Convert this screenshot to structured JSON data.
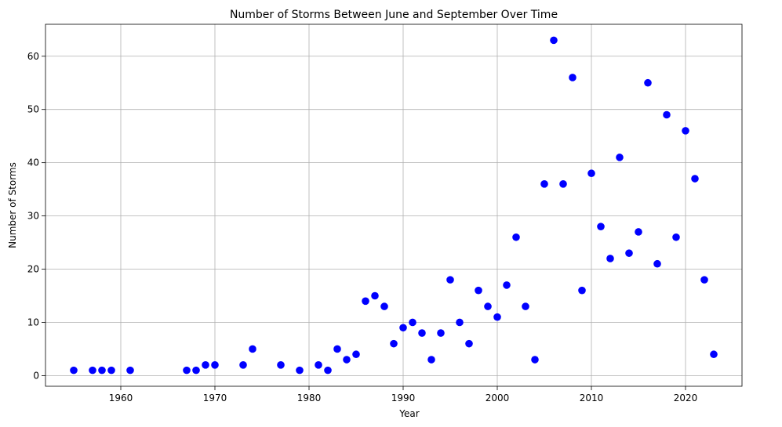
{
  "chart_data": {
    "type": "scatter",
    "title": "Number of Storms Between June and September Over Time",
    "xlabel": "Year",
    "ylabel": "Number of Storms",
    "xlim": [
      1952,
      2026
    ],
    "ylim": [
      -2,
      66
    ],
    "xticks": [
      1960,
      1970,
      1980,
      1990,
      2000,
      2010,
      2020
    ],
    "yticks": [
      0,
      10,
      20,
      30,
      40,
      50,
      60
    ],
    "grid": true,
    "marker_color": "#0000ff",
    "x": [
      1955,
      1957,
      1958,
      1959,
      1961,
      1967,
      1968,
      1969,
      1970,
      1973,
      1974,
      1977,
      1979,
      1981,
      1982,
      1983,
      1984,
      1985,
      1986,
      1987,
      1988,
      1989,
      1990,
      1991,
      1992,
      1993,
      1994,
      1995,
      1996,
      1997,
      1998,
      1999,
      2000,
      2001,
      2002,
      2003,
      2004,
      2005,
      2006,
      2007,
      2008,
      2009,
      2010,
      2011,
      2012,
      2013,
      2014,
      2015,
      2016,
      2017,
      2018,
      2019,
      2020,
      2021,
      2022,
      2023
    ],
    "y": [
      1,
      1,
      1,
      1,
      1,
      1,
      1,
      2,
      2,
      2,
      5,
      2,
      1,
      2,
      1,
      5,
      3,
      4,
      14,
      15,
      13,
      6,
      9,
      10,
      8,
      3,
      8,
      18,
      10,
      6,
      16,
      13,
      11,
      17,
      26,
      13,
      3,
      36,
      63,
      36,
      56,
      16,
      38,
      28,
      22,
      41,
      23,
      27,
      55,
      21,
      49,
      26,
      46,
      37,
      18,
      4
    ]
  }
}
